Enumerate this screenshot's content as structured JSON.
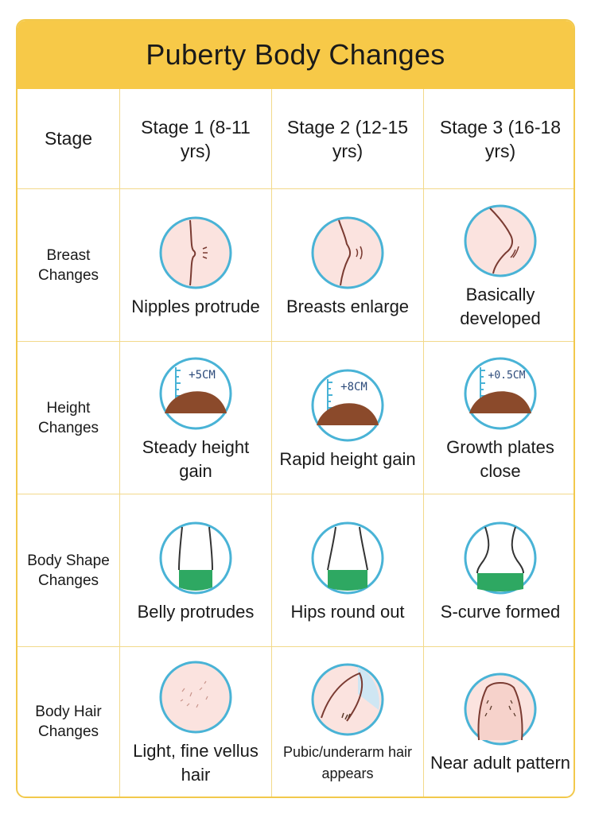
{
  "title": "Puberty Body Changes",
  "header": {
    "corner": "Stage",
    "stages": [
      "Stage 1 (8-11 yrs)",
      "Stage 2 (12-15 yrs)",
      "Stage 3 (16-18 yrs)"
    ]
  },
  "rows": [
    {
      "label": "Breast Changes",
      "icon": "breast-profile-icon",
      "cells": [
        "Nipples protrude",
        "Breasts enlarge",
        "Basically developed"
      ]
    },
    {
      "label": "Height Changes",
      "icon": "height-ruler-icon",
      "measures": [
        "+5CM",
        "+8CM",
        "+0.5CM"
      ],
      "cells": [
        "Steady height gain",
        "Rapid height gain",
        "Growth plates close"
      ]
    },
    {
      "label": "Body Shape Changes",
      "icon": "torso-shape-icon",
      "cells": [
        "Belly protrudes",
        "Hips round out",
        "S-curve formed"
      ]
    },
    {
      "label": "Body Hair Changes",
      "icon": "body-hair-icon",
      "cells": [
        "Light, fine vellus hair",
        "Pubic/underarm hair appears",
        "Near adult pattern"
      ]
    }
  ],
  "colors": {
    "accent": "#f7c948",
    "skin": "#fbe3df",
    "outline": "#7a3b32",
    "ring": "#49b3d6",
    "hair": "#8b4a2b",
    "shorts": "#2ea862"
  }
}
